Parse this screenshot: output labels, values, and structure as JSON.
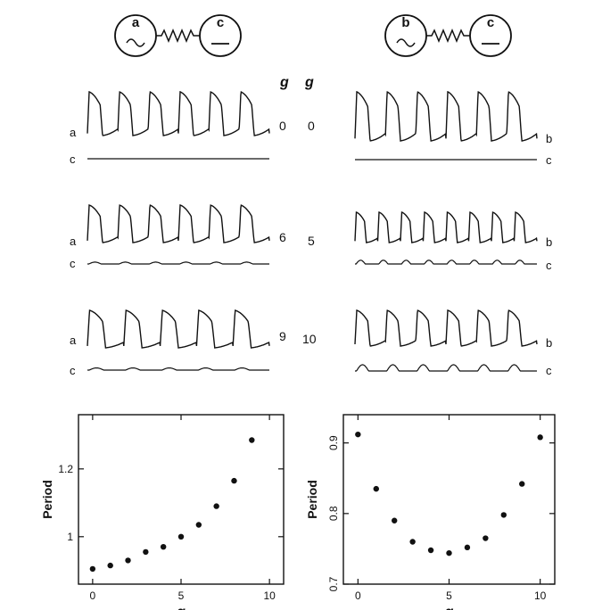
{
  "left": {
    "diagram": {
      "osc_label": "a",
      "passive_label": "c"
    },
    "g_header": "g",
    "rows": [
      {
        "g": "0",
        "top_label": "a",
        "bottom_label": "c",
        "cycles": 6,
        "c_amp": 0
      },
      {
        "g": "6",
        "top_label": "a",
        "bottom_label": "c",
        "cycles": 6,
        "c_amp": 0.3
      },
      {
        "g": "9",
        "top_label": "a",
        "bottom_label": "c",
        "cycles": 5,
        "c_amp": 0.35
      }
    ]
  },
  "right": {
    "diagram": {
      "osc_label": "b",
      "passive_label": "c"
    },
    "g_header": "g",
    "rows": [
      {
        "g": "0",
        "top_label": "b",
        "bottom_label": "c",
        "cycles": 6,
        "c_amp": 0
      },
      {
        "g": "5",
        "top_label": "b",
        "bottom_label": "c",
        "cycles": 8,
        "c_amp": 0.6
      },
      {
        "g": "10",
        "top_label": "b",
        "bottom_label": "c",
        "cycles": 6,
        "c_amp": 1.0
      }
    ]
  },
  "chart_data": [
    {
      "type": "scatter",
      "xlabel": "g",
      "ylabel": "Period",
      "xlim": [
        -0.8,
        10.8
      ],
      "ylim": [
        0.86,
        1.36
      ],
      "xticks": [
        0,
        5,
        10
      ],
      "xtick_labels": [
        "0",
        "5",
        "10"
      ],
      "yticks": [
        1,
        1.2
      ],
      "ytick_labels": [
        "1",
        "1.2"
      ],
      "ytick_rotation": 0,
      "x": [
        0,
        1,
        2,
        3,
        4,
        5,
        6,
        7,
        8,
        9
      ],
      "y": [
        0.905,
        0.915,
        0.93,
        0.955,
        0.97,
        1.0,
        1.035,
        1.09,
        1.165,
        1.285
      ]
    },
    {
      "type": "scatter",
      "xlabel": "g",
      "ylabel": "Period",
      "xlim": [
        -0.8,
        10.8
      ],
      "ylim": [
        0.7,
        0.94
      ],
      "xticks": [
        0,
        5,
        10
      ],
      "xtick_labels": [
        "0",
        "5",
        "10"
      ],
      "yticks": [
        0.7,
        0.8,
        0.9
      ],
      "ytick_labels": [
        "0.7",
        "0.8",
        "0.9"
      ],
      "ytick_rotation": -90,
      "x": [
        0,
        1,
        2,
        3,
        4,
        5,
        6,
        7,
        8,
        9,
        10
      ],
      "y": [
        0.912,
        0.835,
        0.79,
        0.76,
        0.748,
        0.744,
        0.752,
        0.765,
        0.798,
        0.842,
        0.908
      ]
    }
  ]
}
